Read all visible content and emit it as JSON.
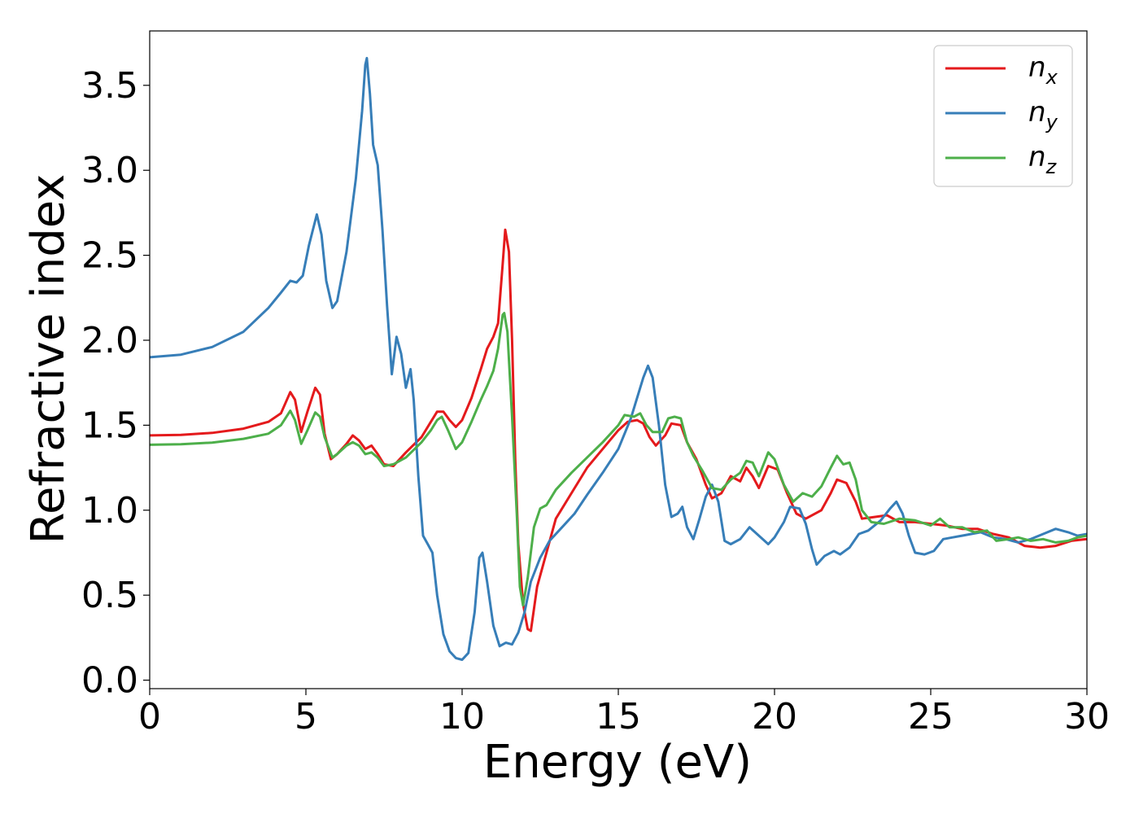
{
  "chart_data": {
    "type": "line",
    "xlabel": "Energy (eV)",
    "ylabel": "Refractive index",
    "xlim": [
      0,
      30
    ],
    "ylim": [
      -0.05,
      3.82
    ],
    "xticks": [
      0,
      5,
      10,
      15,
      20,
      25,
      30
    ],
    "xtick_labels": [
      "0",
      "5",
      "10",
      "15",
      "20",
      "25",
      "30"
    ],
    "yticks": [
      0.0,
      0.5,
      1.0,
      1.5,
      2.0,
      2.5,
      3.0,
      3.5
    ],
    "ytick_labels": [
      "0.0",
      "0.5",
      "1.0",
      "1.5",
      "2.0",
      "2.5",
      "3.0",
      "3.5"
    ],
    "grid": false,
    "legend_position": "top-right",
    "series": [
      {
        "name": "n_x",
        "label_main": "n",
        "label_sub": "x",
        "color": "#e41a1c",
        "points": [
          [
            0,
            1.44
          ],
          [
            1,
            1.443
          ],
          [
            2,
            1.455
          ],
          [
            3,
            1.48
          ],
          [
            3.8,
            1.52
          ],
          [
            4.2,
            1.57
          ],
          [
            4.5,
            1.695
          ],
          [
            4.65,
            1.65
          ],
          [
            4.85,
            1.46
          ],
          [
            5.05,
            1.58
          ],
          [
            5.3,
            1.72
          ],
          [
            5.45,
            1.68
          ],
          [
            5.6,
            1.45
          ],
          [
            5.8,
            1.3
          ],
          [
            6.0,
            1.33
          ],
          [
            6.3,
            1.39
          ],
          [
            6.5,
            1.44
          ],
          [
            6.7,
            1.41
          ],
          [
            6.9,
            1.36
          ],
          [
            7.1,
            1.38
          ],
          [
            7.3,
            1.33
          ],
          [
            7.5,
            1.27
          ],
          [
            7.8,
            1.26
          ],
          [
            8.2,
            1.34
          ],
          [
            8.7,
            1.43
          ],
          [
            9.0,
            1.52
          ],
          [
            9.2,
            1.58
          ],
          [
            9.4,
            1.58
          ],
          [
            9.6,
            1.53
          ],
          [
            9.8,
            1.49
          ],
          [
            10.0,
            1.53
          ],
          [
            10.3,
            1.66
          ],
          [
            10.6,
            1.83
          ],
          [
            10.8,
            1.95
          ],
          [
            11.0,
            2.02
          ],
          [
            11.15,
            2.1
          ],
          [
            11.3,
            2.45
          ],
          [
            11.38,
            2.65
          ],
          [
            11.5,
            2.52
          ],
          [
            11.6,
            2.0
          ],
          [
            11.7,
            1.3
          ],
          [
            11.8,
            0.8
          ],
          [
            11.95,
            0.45
          ],
          [
            12.1,
            0.3
          ],
          [
            12.2,
            0.29
          ],
          [
            12.4,
            0.55
          ],
          [
            12.7,
            0.75
          ],
          [
            13.0,
            0.95
          ],
          [
            13.5,
            1.1
          ],
          [
            14.0,
            1.25
          ],
          [
            14.5,
            1.36
          ],
          [
            15.0,
            1.47
          ],
          [
            15.3,
            1.52
          ],
          [
            15.6,
            1.53
          ],
          [
            15.8,
            1.51
          ],
          [
            16.0,
            1.43
          ],
          [
            16.2,
            1.38
          ],
          [
            16.5,
            1.44
          ],
          [
            16.7,
            1.51
          ],
          [
            17.0,
            1.5
          ],
          [
            17.2,
            1.4
          ],
          [
            17.5,
            1.3
          ],
          [
            17.8,
            1.15
          ],
          [
            18.0,
            1.07
          ],
          [
            18.3,
            1.1
          ],
          [
            18.6,
            1.2
          ],
          [
            18.9,
            1.17
          ],
          [
            19.1,
            1.25
          ],
          [
            19.3,
            1.2
          ],
          [
            19.5,
            1.13
          ],
          [
            19.8,
            1.26
          ],
          [
            20.1,
            1.24
          ],
          [
            20.4,
            1.1
          ],
          [
            20.7,
            0.98
          ],
          [
            21.0,
            0.95
          ],
          [
            21.5,
            1.0
          ],
          [
            21.8,
            1.1
          ],
          [
            22.0,
            1.18
          ],
          [
            22.3,
            1.16
          ],
          [
            22.6,
            1.05
          ],
          [
            22.8,
            0.95
          ],
          [
            23.2,
            0.96
          ],
          [
            23.6,
            0.97
          ],
          [
            24.0,
            0.93
          ],
          [
            24.5,
            0.93
          ],
          [
            25.0,
            0.92
          ],
          [
            25.5,
            0.91
          ],
          [
            26.0,
            0.89
          ],
          [
            26.5,
            0.89
          ],
          [
            27.0,
            0.86
          ],
          [
            27.5,
            0.84
          ],
          [
            28.0,
            0.79
          ],
          [
            28.5,
            0.78
          ],
          [
            29.0,
            0.79
          ],
          [
            29.5,
            0.82
          ],
          [
            30.0,
            0.83
          ]
        ]
      },
      {
        "name": "n_y",
        "label_main": "n",
        "label_sub": "y",
        "color": "#377eb8",
        "points": [
          [
            0,
            1.9
          ],
          [
            1,
            1.915
          ],
          [
            2,
            1.96
          ],
          [
            3,
            2.05
          ],
          [
            3.8,
            2.19
          ],
          [
            4.2,
            2.28
          ],
          [
            4.5,
            2.35
          ],
          [
            4.7,
            2.34
          ],
          [
            4.9,
            2.38
          ],
          [
            5.1,
            2.56
          ],
          [
            5.35,
            2.74
          ],
          [
            5.5,
            2.62
          ],
          [
            5.65,
            2.35
          ],
          [
            5.85,
            2.19
          ],
          [
            6.0,
            2.23
          ],
          [
            6.3,
            2.52
          ],
          [
            6.6,
            2.95
          ],
          [
            6.8,
            3.35
          ],
          [
            6.9,
            3.62
          ],
          [
            6.95,
            3.66
          ],
          [
            7.05,
            3.45
          ],
          [
            7.15,
            3.15
          ],
          [
            7.3,
            3.03
          ],
          [
            7.45,
            2.65
          ],
          [
            7.6,
            2.2
          ],
          [
            7.75,
            1.8
          ],
          [
            7.9,
            2.02
          ],
          [
            8.05,
            1.92
          ],
          [
            8.2,
            1.72
          ],
          [
            8.35,
            1.83
          ],
          [
            8.45,
            1.65
          ],
          [
            8.6,
            1.2
          ],
          [
            8.75,
            0.85
          ],
          [
            8.9,
            0.8
          ],
          [
            9.05,
            0.75
          ],
          [
            9.2,
            0.5
          ],
          [
            9.4,
            0.27
          ],
          [
            9.6,
            0.17
          ],
          [
            9.8,
            0.13
          ],
          [
            10.0,
            0.12
          ],
          [
            10.2,
            0.16
          ],
          [
            10.4,
            0.4
          ],
          [
            10.55,
            0.72
          ],
          [
            10.65,
            0.75
          ],
          [
            10.8,
            0.58
          ],
          [
            11.0,
            0.32
          ],
          [
            11.2,
            0.2
          ],
          [
            11.4,
            0.22
          ],
          [
            11.6,
            0.21
          ],
          [
            11.8,
            0.28
          ],
          [
            12.0,
            0.4
          ],
          [
            12.2,
            0.58
          ],
          [
            12.5,
            0.72
          ],
          [
            12.8,
            0.82
          ],
          [
            13.2,
            0.9
          ],
          [
            13.6,
            0.98
          ],
          [
            14.0,
            1.09
          ],
          [
            14.5,
            1.22
          ],
          [
            15.0,
            1.36
          ],
          [
            15.4,
            1.54
          ],
          [
            15.8,
            1.78
          ],
          [
            15.95,
            1.85
          ],
          [
            16.1,
            1.78
          ],
          [
            16.3,
            1.5
          ],
          [
            16.5,
            1.15
          ],
          [
            16.7,
            0.96
          ],
          [
            16.9,
            0.98
          ],
          [
            17.05,
            1.02
          ],
          [
            17.2,
            0.9
          ],
          [
            17.4,
            0.83
          ],
          [
            17.6,
            0.95
          ],
          [
            17.8,
            1.08
          ],
          [
            18.0,
            1.15
          ],
          [
            18.2,
            1.05
          ],
          [
            18.4,
            0.82
          ],
          [
            18.6,
            0.8
          ],
          [
            18.9,
            0.83
          ],
          [
            19.2,
            0.9
          ],
          [
            19.5,
            0.85
          ],
          [
            19.8,
            0.8
          ],
          [
            20.0,
            0.84
          ],
          [
            20.3,
            0.93
          ],
          [
            20.5,
            1.02
          ],
          [
            20.8,
            1.01
          ],
          [
            21.0,
            0.92
          ],
          [
            21.2,
            0.77
          ],
          [
            21.35,
            0.68
          ],
          [
            21.6,
            0.73
          ],
          [
            21.9,
            0.76
          ],
          [
            22.1,
            0.74
          ],
          [
            22.4,
            0.78
          ],
          [
            22.7,
            0.86
          ],
          [
            23.0,
            0.88
          ],
          [
            23.4,
            0.94
          ],
          [
            23.7,
            1.01
          ],
          [
            23.9,
            1.05
          ],
          [
            24.1,
            0.98
          ],
          [
            24.3,
            0.85
          ],
          [
            24.5,
            0.75
          ],
          [
            24.8,
            0.74
          ],
          [
            25.1,
            0.76
          ],
          [
            25.4,
            0.83
          ],
          [
            25.7,
            0.84
          ],
          [
            26.0,
            0.85
          ],
          [
            26.3,
            0.86
          ],
          [
            26.6,
            0.87
          ],
          [
            27.0,
            0.84
          ],
          [
            27.4,
            0.83
          ],
          [
            27.8,
            0.81
          ],
          [
            28.2,
            0.83
          ],
          [
            28.6,
            0.86
          ],
          [
            29.0,
            0.89
          ],
          [
            29.4,
            0.87
          ],
          [
            29.7,
            0.85
          ],
          [
            30.0,
            0.86
          ]
        ]
      },
      {
        "name": "n_z",
        "label_main": "n",
        "label_sub": "z",
        "color": "#4daf4a",
        "points": [
          [
            0,
            1.385
          ],
          [
            1,
            1.388
          ],
          [
            2,
            1.398
          ],
          [
            3,
            1.42
          ],
          [
            3.8,
            1.45
          ],
          [
            4.2,
            1.5
          ],
          [
            4.5,
            1.585
          ],
          [
            4.65,
            1.53
          ],
          [
            4.85,
            1.39
          ],
          [
            5.05,
            1.47
          ],
          [
            5.3,
            1.575
          ],
          [
            5.45,
            1.55
          ],
          [
            5.6,
            1.43
          ],
          [
            5.85,
            1.31
          ],
          [
            6.0,
            1.33
          ],
          [
            6.3,
            1.38
          ],
          [
            6.5,
            1.4
          ],
          [
            6.7,
            1.38
          ],
          [
            6.9,
            1.33
          ],
          [
            7.1,
            1.34
          ],
          [
            7.3,
            1.31
          ],
          [
            7.5,
            1.26
          ],
          [
            7.8,
            1.27
          ],
          [
            8.2,
            1.31
          ],
          [
            8.7,
            1.4
          ],
          [
            9.0,
            1.47
          ],
          [
            9.2,
            1.53
          ],
          [
            9.35,
            1.55
          ],
          [
            9.55,
            1.47
          ],
          [
            9.8,
            1.36
          ],
          [
            10.0,
            1.4
          ],
          [
            10.3,
            1.52
          ],
          [
            10.6,
            1.65
          ],
          [
            10.8,
            1.73
          ],
          [
            11.0,
            1.82
          ],
          [
            11.15,
            1.95
          ],
          [
            11.3,
            2.15
          ],
          [
            11.35,
            2.16
          ],
          [
            11.45,
            2.05
          ],
          [
            11.6,
            1.55
          ],
          [
            11.75,
            0.98
          ],
          [
            11.85,
            0.55
          ],
          [
            11.95,
            0.44
          ],
          [
            12.1,
            0.6
          ],
          [
            12.3,
            0.9
          ],
          [
            12.5,
            1.01
          ],
          [
            12.7,
            1.03
          ],
          [
            13.0,
            1.12
          ],
          [
            13.5,
            1.22
          ],
          [
            14.0,
            1.31
          ],
          [
            14.5,
            1.4
          ],
          [
            15.0,
            1.5
          ],
          [
            15.2,
            1.56
          ],
          [
            15.5,
            1.55
          ],
          [
            15.7,
            1.57
          ],
          [
            15.9,
            1.5
          ],
          [
            16.1,
            1.46
          ],
          [
            16.4,
            1.46
          ],
          [
            16.6,
            1.54
          ],
          [
            16.8,
            1.55
          ],
          [
            17.0,
            1.54
          ],
          [
            17.2,
            1.4
          ],
          [
            17.4,
            1.32
          ],
          [
            17.7,
            1.23
          ],
          [
            18.0,
            1.13
          ],
          [
            18.3,
            1.12
          ],
          [
            18.6,
            1.18
          ],
          [
            18.9,
            1.22
          ],
          [
            19.1,
            1.29
          ],
          [
            19.3,
            1.28
          ],
          [
            19.5,
            1.2
          ],
          [
            19.8,
            1.34
          ],
          [
            20.0,
            1.3
          ],
          [
            20.3,
            1.15
          ],
          [
            20.6,
            1.05
          ],
          [
            20.9,
            1.1
          ],
          [
            21.2,
            1.08
          ],
          [
            21.5,
            1.14
          ],
          [
            21.8,
            1.25
          ],
          [
            22.0,
            1.32
          ],
          [
            22.2,
            1.27
          ],
          [
            22.4,
            1.28
          ],
          [
            22.6,
            1.18
          ],
          [
            22.8,
            1.0
          ],
          [
            23.1,
            0.93
          ],
          [
            23.5,
            0.92
          ],
          [
            24.0,
            0.95
          ],
          [
            24.5,
            0.94
          ],
          [
            25.0,
            0.91
          ],
          [
            25.3,
            0.95
          ],
          [
            25.6,
            0.9
          ],
          [
            26.0,
            0.9
          ],
          [
            26.4,
            0.87
          ],
          [
            26.8,
            0.88
          ],
          [
            27.1,
            0.82
          ],
          [
            27.5,
            0.83
          ],
          [
            27.8,
            0.84
          ],
          [
            28.2,
            0.82
          ],
          [
            28.6,
            0.83
          ],
          [
            29.0,
            0.81
          ],
          [
            29.4,
            0.82
          ],
          [
            29.7,
            0.84
          ],
          [
            30.0,
            0.85
          ]
        ]
      }
    ]
  }
}
